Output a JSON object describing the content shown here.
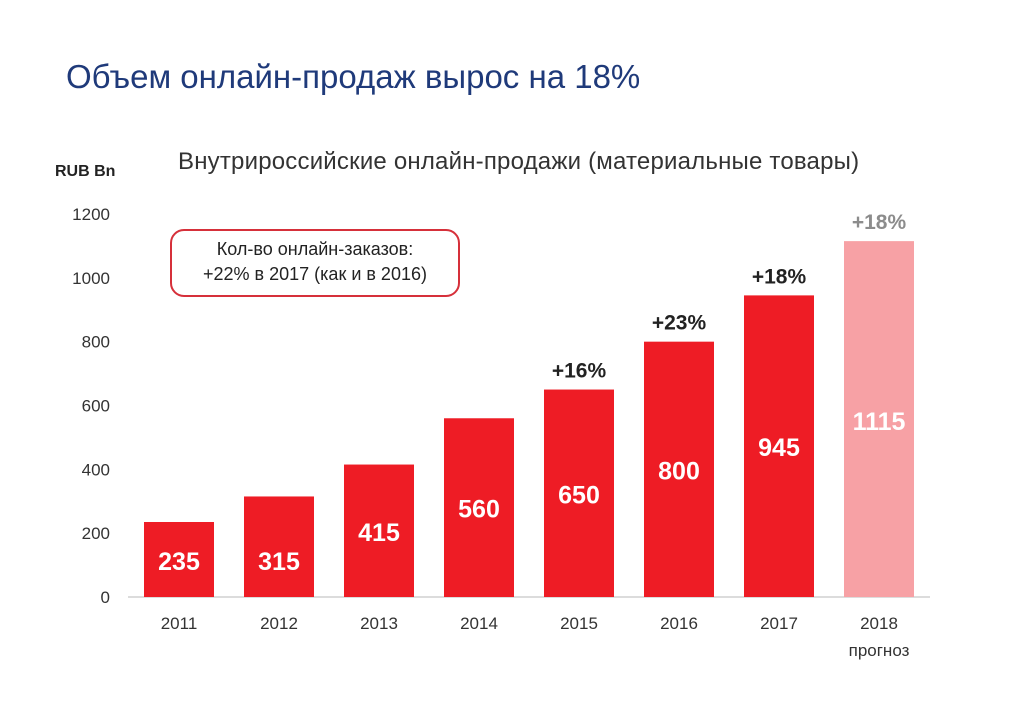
{
  "slide": {
    "title": "Объем онлайн-продаж вырос на 18%"
  },
  "callout": {
    "line1": "Кол-во онлайн-заказов:",
    "line2": "+22% в 2017 (как и в 2016)"
  },
  "colors": {
    "bar": "#ee1c25",
    "forecast_bar": "#f7a1a5",
    "growth_label": "#222222",
    "forecast_growth_label": "#8c8c8c",
    "title": "#1f3a7a"
  },
  "chart_data": {
    "type": "bar",
    "title": "Внутрироссийские онлайн-продажи (материальные товары)",
    "ylabel": "RUB Bn",
    "xlabel": "",
    "ylim": [
      0,
      1200
    ],
    "yticks": [
      0,
      200,
      400,
      600,
      800,
      1000,
      1200
    ],
    "categories": [
      "2011",
      "2012",
      "2013",
      "2014",
      "2015",
      "2016",
      "2017",
      "2018"
    ],
    "category_sublabels": [
      "",
      "",
      "",
      "",
      "",
      "",
      "",
      "прогноз"
    ],
    "values": [
      235,
      315,
      415,
      560,
      650,
      800,
      945,
      1115
    ],
    "data_labels": [
      "235",
      "315",
      "415",
      "560",
      "650",
      "800",
      "945",
      "1115"
    ],
    "growth_labels": [
      "",
      "",
      "",
      "",
      "+16%",
      "+23%",
      "+18%",
      "+18%"
    ],
    "forecast": [
      false,
      false,
      false,
      false,
      false,
      false,
      false,
      true
    ],
    "grid": false,
    "legend": "none"
  }
}
